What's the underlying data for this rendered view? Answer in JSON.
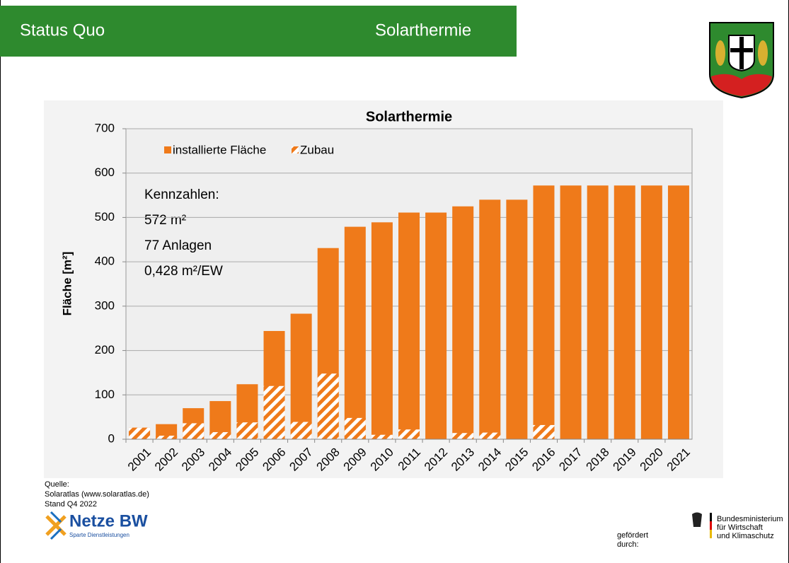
{
  "header": {
    "left": "Status Quo",
    "right": "Solarthermie"
  },
  "chart_data": {
    "type": "bar",
    "title": "Solarthermie",
    "y_label": "Fläche [m²]",
    "categories": [
      "2001",
      "2002",
      "2003",
      "2004",
      "2005",
      "2006",
      "2007",
      "2008",
      "2009",
      "2010",
      "2011",
      "2012",
      "2013",
      "2014",
      "2015",
      "2016",
      "2017",
      "2018",
      "2019",
      "2020",
      "2021"
    ],
    "series": [
      {
        "name": "installierte Fläche",
        "color": "#ef7a1a",
        "values": [
          26,
          34,
          70,
          86,
          124,
          244,
          283,
          431,
          479,
          489,
          511,
          511,
          525,
          540,
          540,
          572,
          572,
          572,
          572,
          572,
          572
        ]
      },
      {
        "name": "Zubau",
        "color": "#ef7a1a",
        "hatch": true,
        "values": [
          26,
          8,
          36,
          16,
          38,
          120,
          39,
          148,
          48,
          10,
          22,
          0,
          14,
          15,
          0,
          32,
          0,
          0,
          0,
          0,
          0
        ]
      }
    ],
    "overlap": true,
    "ylim": [
      0,
      700
    ],
    "yticks": [
      0,
      100,
      200,
      300,
      400,
      500,
      600,
      700
    ],
    "grid": true,
    "annotation": [
      "Kennzahlen:",
      "572 m²",
      "77 Anlagen",
      "0,428 m²/EW"
    ]
  },
  "source": [
    "Quelle:",
    "Solaratlas (www.solaratlas.de)",
    "Stand Q4 2022"
  ],
  "footer": {
    "logo": "Netze BW",
    "logo_sub": "Sparte Dienstleistungen",
    "funded": [
      "gefördert",
      "durch:"
    ],
    "ministry": [
      "Bundesministerium",
      "für Wirtschaft",
      "und Klimaschutz"
    ]
  }
}
